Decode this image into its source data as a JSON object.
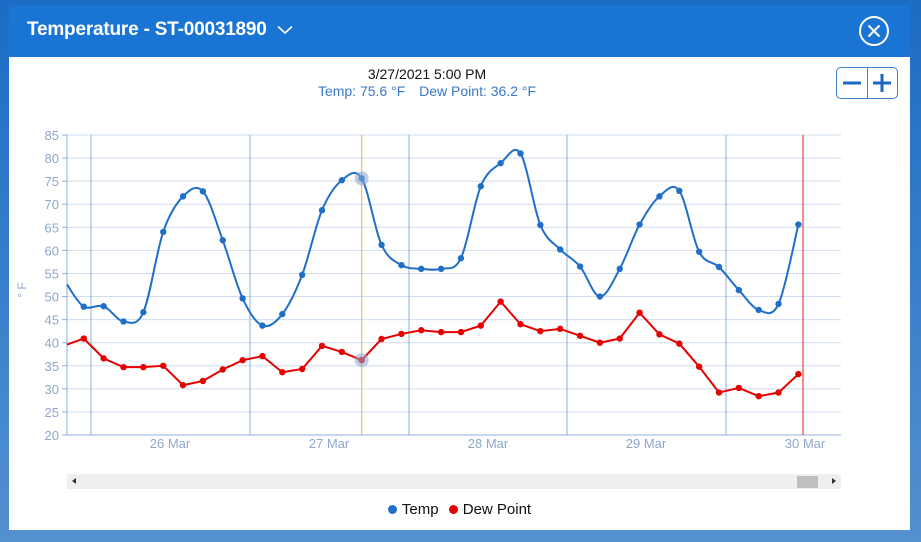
{
  "header": {
    "title": "Temperature - ST-00031890",
    "dropdown_icon": "chevron-down-icon",
    "close_icon": "close-circle-icon"
  },
  "tooltip": {
    "datetime": "3/27/2021 5:00 PM",
    "temp_label": "Temp: 75.6 °F",
    "dew_label": "Dew Point: 36.2 °F"
  },
  "zoom_controls": {
    "minus": "−",
    "plus": "+"
  },
  "legend": {
    "items": [
      {
        "label": "Temp",
        "color": "#1f6fc9"
      },
      {
        "label": "Dew Point",
        "color": "#e60000"
      }
    ]
  },
  "colors": {
    "temp": "#1f6fc9",
    "dew": "#e60000",
    "grid": "#cfdcee",
    "day_line": "#8fb0d8",
    "axis_text": "#8fa6cc",
    "crosshair": "#f0b030",
    "now_line": "#ef4040"
  },
  "chart_data": {
    "type": "line",
    "title": "",
    "xlabel": "",
    "ylabel": "° F",
    "ylim": [
      20,
      85
    ],
    "yticks": [
      20,
      25,
      30,
      35,
      40,
      45,
      50,
      55,
      60,
      65,
      70,
      75,
      80,
      85
    ],
    "xtick_labels": [
      "26 Mar",
      "27 Mar",
      "28 Mar",
      "29 Mar",
      "30 Mar"
    ],
    "grid": true,
    "legend_position": "bottom",
    "x_interval_hours": 3,
    "x": [
      "3/25 11PM",
      "3/26 2AM",
      "3/26 5AM",
      "3/26 8AM",
      "3/26 11AM",
      "3/26 2PM",
      "3/26 5PM",
      "3/26 8PM",
      "3/26 11PM",
      "3/27 2AM",
      "3/27 5AM",
      "3/27 8AM",
      "3/27 11AM",
      "3/27 2PM",
      "3/27 5PM",
      "3/27 8PM",
      "3/27 11PM",
      "3/28 2AM",
      "3/28 5AM",
      "3/28 8AM",
      "3/28 11AM",
      "3/28 2PM",
      "3/28 5PM",
      "3/28 8PM",
      "3/28 11PM",
      "3/29 2AM",
      "3/29 5AM",
      "3/29 8AM",
      "3/29 11AM",
      "3/29 2PM",
      "3/29 5PM",
      "3/29 8PM",
      "3/29 11PM",
      "3/30 2AM",
      "3/30 5AM",
      "3/30 8AM",
      "3/30 11AM"
    ],
    "series": [
      {
        "name": "Temp",
        "values": [
          47.8,
          47.9,
          44.6,
          46.6,
          64.0,
          71.7,
          72.8,
          62.2,
          49.6,
          43.7,
          46.2,
          54.7,
          68.7,
          75.2,
          75.6,
          61.2,
          56.8,
          56.0,
          56.0,
          58.3,
          73.9,
          78.9,
          81.0,
          65.5,
          60.2,
          56.5,
          50.0,
          56.0,
          65.6,
          71.7,
          72.9,
          59.7,
          56.4,
          51.4,
          47.1,
          48.4,
          65.6
        ]
      },
      {
        "name": "Dew Point",
        "values": [
          40.9,
          36.6,
          34.7,
          34.7,
          35.0,
          30.8,
          31.7,
          34.2,
          36.2,
          37.1,
          33.6,
          34.3,
          39.3,
          38.0,
          36.2,
          40.8,
          41.9,
          42.7,
          42.3,
          42.3,
          43.7,
          48.9,
          44.0,
          42.5,
          43.0,
          41.5,
          40.0,
          40.9,
          46.5,
          41.8,
          39.8,
          34.8,
          29.2,
          30.2,
          28.4,
          29.2,
          33.2
        ]
      }
    ],
    "leading_values": {
      "Temp": 52.6,
      "Dew Point": 39.6
    },
    "highlighted_index": 14,
    "annotations": [
      "crosshair at 3/27/2021 5:00 PM",
      "current-time marker near 30 Mar"
    ]
  },
  "scrollbar": {
    "left_arrow": "scroll-left",
    "right_arrow": "scroll-right"
  }
}
